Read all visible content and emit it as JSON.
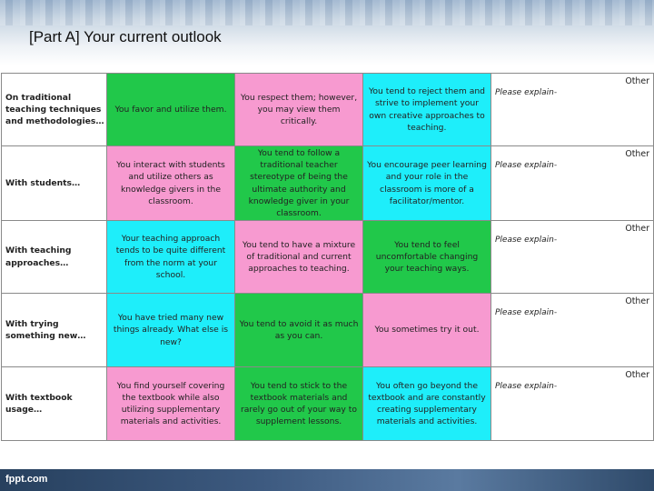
{
  "slide": {
    "title": "[Part A] Your current outlook"
  },
  "table": {
    "other_label": "Other",
    "explain_label": "Please explain-",
    "rows": [
      {
        "question": "On traditional teaching techniques and methodologies…",
        "options": [
          {
            "text": "You favor and utilize them.",
            "color": "#21c84a"
          },
          {
            "text": "You respect them; however, you may view them critically.",
            "color": "#f79ad0"
          },
          {
            "text": "You tend to reject them and strive to implement your own creative approaches to teaching.",
            "color": "#1eeefa"
          }
        ]
      },
      {
        "question": "With students…",
        "options": [
          {
            "text": "You interact with students and utilize others as knowledge givers in the classroom.",
            "color": "#f79ad0"
          },
          {
            "text": "You tend to follow a traditional teacher stereotype of being the ultimate authority and knowledge giver in your classroom.",
            "color": "#21c84a"
          },
          {
            "text": "You encourage peer learning and your role in the classroom is more of a facilitator/mentor.",
            "color": "#1eeefa"
          }
        ]
      },
      {
        "question": "With teaching approaches…",
        "options": [
          {
            "text": "Your teaching approach tends to be quite different from the norm at your school.",
            "color": "#1eeefa"
          },
          {
            "text": "You tend to have a mixture of traditional and current approaches to teaching.",
            "color": "#f79ad0"
          },
          {
            "text": "You tend to feel uncomfortable changing your teaching ways.",
            "color": "#21c84a"
          }
        ]
      },
      {
        "question": "With trying something new…",
        "options": [
          {
            "text": "You have tried many new things already. What else is new?",
            "color": "#1eeefa"
          },
          {
            "text": "You tend to avoid it as much as you can.",
            "color": "#21c84a"
          },
          {
            "text": "You sometimes try it out.",
            "color": "#f79ad0"
          }
        ]
      },
      {
        "question": "With textbook usage…",
        "options": [
          {
            "text": "You find yourself covering the textbook while also utilizing supplementary materials and activities.",
            "color": "#f79ad0"
          },
          {
            "text": "You tend to stick to the textbook materials and rarely go out of your way to supplement lessons.",
            "color": "#21c84a"
          },
          {
            "text": "You often go beyond the textbook and are constantly creating supplementary materials and activities.",
            "color": "#1eeefa"
          }
        ]
      }
    ]
  },
  "footer": {
    "brand": "fppt.com"
  }
}
